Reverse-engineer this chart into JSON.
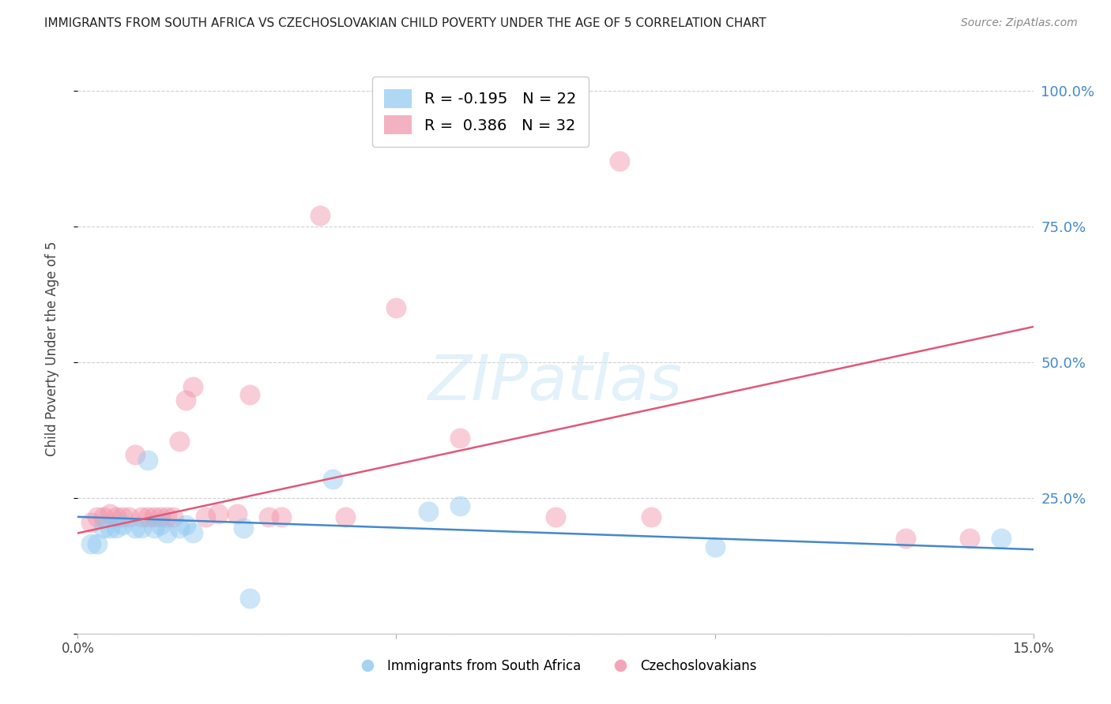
{
  "title": "IMMIGRANTS FROM SOUTH AFRICA VS CZECHOSLOVAKIAN CHILD POVERTY UNDER THE AGE OF 5 CORRELATION CHART",
  "source": "Source: ZipAtlas.com",
  "ylabel": "Child Poverty Under the Age of 5",
  "x_min": 0.0,
  "x_max": 0.15,
  "y_min": 0.0,
  "y_max": 1.05,
  "x_ticks": [
    0.0,
    0.05,
    0.1,
    0.15
  ],
  "x_tick_labels": [
    "0.0%",
    "",
    "",
    "15.0%"
  ],
  "y_ticks": [
    0.0,
    0.25,
    0.5,
    0.75,
    1.0
  ],
  "y_tick_labels_right": [
    "",
    "25.0%",
    "50.0%",
    "75.0%",
    "100.0%"
  ],
  "blue_scatter_x": [
    0.002,
    0.003,
    0.004,
    0.005,
    0.006,
    0.007,
    0.009,
    0.01,
    0.011,
    0.012,
    0.013,
    0.014,
    0.016,
    0.017,
    0.018,
    0.026,
    0.027,
    0.04,
    0.055,
    0.06,
    0.1,
    0.145
  ],
  "blue_scatter_y": [
    0.165,
    0.165,
    0.195,
    0.195,
    0.195,
    0.2,
    0.195,
    0.195,
    0.32,
    0.195,
    0.2,
    0.185,
    0.195,
    0.2,
    0.185,
    0.195,
    0.065,
    0.285,
    0.225,
    0.235,
    0.16,
    0.175
  ],
  "pink_scatter_x": [
    0.002,
    0.003,
    0.004,
    0.005,
    0.006,
    0.007,
    0.008,
    0.009,
    0.01,
    0.011,
    0.012,
    0.013,
    0.014,
    0.015,
    0.016,
    0.017,
    0.018,
    0.02,
    0.022,
    0.025,
    0.027,
    0.03,
    0.032,
    0.038,
    0.042,
    0.05,
    0.06,
    0.075,
    0.085,
    0.09,
    0.13,
    0.14
  ],
  "pink_scatter_y": [
    0.205,
    0.215,
    0.215,
    0.22,
    0.215,
    0.215,
    0.215,
    0.33,
    0.215,
    0.215,
    0.215,
    0.215,
    0.215,
    0.215,
    0.355,
    0.43,
    0.455,
    0.215,
    0.22,
    0.22,
    0.44,
    0.215,
    0.215,
    0.77,
    0.215,
    0.6,
    0.36,
    0.215,
    0.87,
    0.215,
    0.175,
    0.175
  ],
  "blue_line_x": [
    0.0,
    0.15
  ],
  "blue_line_y": [
    0.215,
    0.155
  ],
  "pink_line_x": [
    0.0,
    0.15
  ],
  "pink_line_y": [
    0.185,
    0.565
  ],
  "scatter_size": 350,
  "scatter_alpha": 0.45,
  "blue_color": "#8ec8f0",
  "pink_color": "#f090a8",
  "blue_line_color": "#4488cc",
  "pink_line_color": "#e05878",
  "watermark_text": "ZIPatlas",
  "watermark_color": "#d0e8f8",
  "watermark_alpha": 0.6,
  "background_color": "#ffffff",
  "grid_color": "#cccccc",
  "title_color": "#222222",
  "source_color": "#888888",
  "ylabel_color": "#444444",
  "right_tick_color": "#4488cc",
  "bottom_tick_color": "#444444",
  "legend_r1": "R = -0.195",
  "legend_n1": "N = 22",
  "legend_r2": "R =  0.386",
  "legend_n2": "N = 32",
  "legend_label1": "Immigrants from South Africa",
  "legend_label2": "Czechoslovakians"
}
